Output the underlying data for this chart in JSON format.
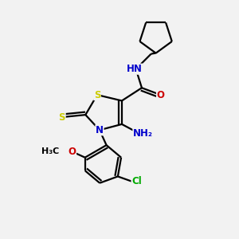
{
  "bg_color": "#f2f2f2",
  "bond_color": "#000000",
  "bond_width": 1.6,
  "atom_colors": {
    "S": "#cccc00",
    "N": "#0000cc",
    "O": "#cc0000",
    "Cl": "#00aa00",
    "C": "#000000",
    "H": "#555555"
  },
  "font_size": 8.5,
  "xlim": [
    0,
    10
  ],
  "ylim": [
    0,
    10
  ]
}
